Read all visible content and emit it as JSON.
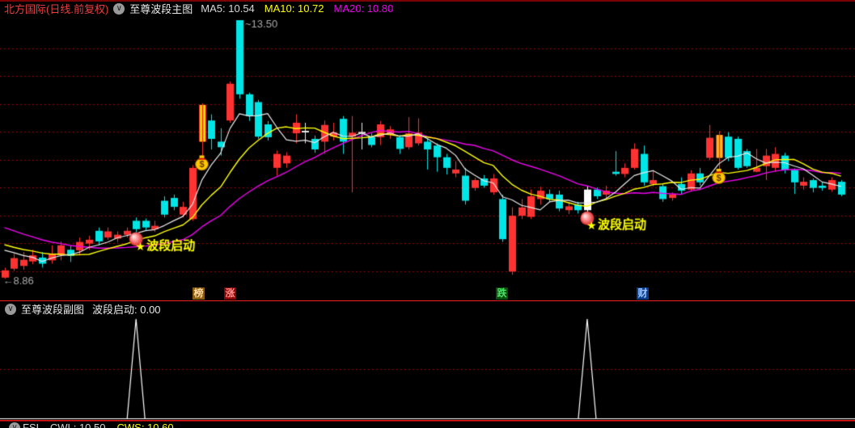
{
  "header": {
    "stock_title": "北方国际(日线.前复权)",
    "panel_title": "至尊波段主图",
    "ma5_label": "MA5: 10.54",
    "ma10_label": "MA10: 10.72",
    "ma20_label": "MA20: 10.80"
  },
  "colors": {
    "up": "#ff3232",
    "down": "#00e5e5",
    "banker_stripe": "#ffff00",
    "signal_candle": "#ffffff",
    "doji": "#e8e8e8",
    "ma5": "#e8e8e8",
    "ma10": "#ffff00",
    "ma20": "#ee00ee",
    "grid": "#c80000",
    "marker_text": "#ffff00",
    "annotation": "#aaaaaa",
    "spike": "#ffffff",
    "bag_body": "#ffc800",
    "bag_outline": "#8a5a00"
  },
  "tags": [
    {
      "label": "榜",
      "bg": "#8a5c10",
      "fg": "#ffd9a0"
    },
    {
      "label": "涨",
      "bg": "#8a0404",
      "fg": "#ff9090"
    },
    {
      "label": "跌",
      "bg": "#064f06",
      "fg": "#4de06a"
    },
    {
      "label": "财",
      "bg": "#0a3c8c",
      "fg": "#9cc3ff"
    }
  ],
  "subheader": {
    "title": "至尊波段副图",
    "value_label": "波段启动: 0.00"
  },
  "bottombar": {
    "name": "FSL",
    "cwl": "CWL: 10.50",
    "cws": "CWS: 10.60"
  },
  "chart_data": [
    {
      "type": "candlestick",
      "title": "至尊波段主图",
      "ma_values": {
        "MA5": 10.54,
        "MA10": 10.72,
        "MA20": 10.8
      },
      "ylim": [
        8.8,
        13.6
      ],
      "grid_levels": [
        9.0,
        9.5,
        10.0,
        10.5,
        11.0,
        11.5,
        12.0,
        12.5,
        13.0
      ],
      "legend": [
        "MA5",
        "MA10",
        "MA20"
      ],
      "candles": [
        [
          8.88,
          9.06,
          8.86,
          9.01,
          "u"
        ],
        [
          9.04,
          9.31,
          9.0,
          9.23,
          "u"
        ],
        [
          9.09,
          9.34,
          9.02,
          9.2,
          "u"
        ],
        [
          9.17,
          9.38,
          9.12,
          9.28,
          "u"
        ],
        [
          9.24,
          9.34,
          9.06,
          9.13,
          "d"
        ],
        [
          9.19,
          9.46,
          9.13,
          9.31,
          "u"
        ],
        [
          9.28,
          9.53,
          9.19,
          9.46,
          "u"
        ],
        [
          9.38,
          9.46,
          9.16,
          9.27,
          "d"
        ],
        [
          9.37,
          9.6,
          9.28,
          9.52,
          "u"
        ],
        [
          9.49,
          9.63,
          9.38,
          9.56,
          "u"
        ],
        [
          9.72,
          9.78,
          9.46,
          9.53,
          "d"
        ],
        [
          9.6,
          9.78,
          9.56,
          9.71,
          "u"
        ],
        [
          9.58,
          9.71,
          9.52,
          9.65,
          "u"
        ],
        [
          9.65,
          9.78,
          9.6,
          9.72,
          "u"
        ],
        [
          9.9,
          9.96,
          9.69,
          9.75,
          "d"
        ],
        [
          9.9,
          9.94,
          9.72,
          9.78,
          "d"
        ],
        [
          9.75,
          9.9,
          9.7,
          9.81,
          "u"
        ],
        [
          10.26,
          10.34,
          9.96,
          10.01,
          "d"
        ],
        [
          10.31,
          10.37,
          10.09,
          10.15,
          "d"
        ],
        [
          10.01,
          10.24,
          9.96,
          10.15,
          "u"
        ],
        [
          9.93,
          10.9,
          9.9,
          10.85,
          "u"
        ],
        [
          11.32,
          12.01,
          11.03,
          11.98,
          "b"
        ],
        [
          11.7,
          11.81,
          11.18,
          11.37,
          "d"
        ],
        [
          11.32,
          11.56,
          11.07,
          11.22,
          "d"
        ],
        [
          11.7,
          12.4,
          11.66,
          12.36,
          "u"
        ],
        [
          13.5,
          13.5,
          12.09,
          12.17,
          "d"
        ],
        [
          12.17,
          12.2,
          11.69,
          11.78,
          "d"
        ],
        [
          12.03,
          12.07,
          11.37,
          11.41,
          "d"
        ],
        [
          11.63,
          11.69,
          11.34,
          11.4,
          "d"
        ],
        [
          10.85,
          11.16,
          10.71,
          11.1,
          "u"
        ],
        [
          10.93,
          11.13,
          10.85,
          11.07,
          "u"
        ],
        [
          11.47,
          11.81,
          11.29,
          11.66,
          "u"
        ],
        [
          11.45,
          11.66,
          11.29,
          11.5,
          "x"
        ],
        [
          11.37,
          11.43,
          11.12,
          11.18,
          "d"
        ],
        [
          11.32,
          11.7,
          11.1,
          11.62,
          "u"
        ],
        [
          11.41,
          11.66,
          11.34,
          11.48,
          "u"
        ],
        [
          11.73,
          11.78,
          11.1,
          11.32,
          "d"
        ],
        [
          11.41,
          11.78,
          10.41,
          11.48,
          "u"
        ],
        [
          11.4,
          11.66,
          11.18,
          11.48,
          "x"
        ],
        [
          11.4,
          11.47,
          11.22,
          11.26,
          "d"
        ],
        [
          11.4,
          11.69,
          11.26,
          11.63,
          "u"
        ],
        [
          11.44,
          11.6,
          11.37,
          11.54,
          "u"
        ],
        [
          11.4,
          11.44,
          11.1,
          11.19,
          "d"
        ],
        [
          11.22,
          11.76,
          11.18,
          11.47,
          "u"
        ],
        [
          11.29,
          11.74,
          11.25,
          11.48,
          "u"
        ],
        [
          11.32,
          11.37,
          10.82,
          11.18,
          "d"
        ],
        [
          11.25,
          11.29,
          10.78,
          11.04,
          "d"
        ],
        [
          11.04,
          11.1,
          10.73,
          10.85,
          "d"
        ],
        [
          10.75,
          10.97,
          10.68,
          10.82,
          "u"
        ],
        [
          10.71,
          10.85,
          10.19,
          10.26,
          "d"
        ],
        [
          10.49,
          10.67,
          10.44,
          10.63,
          "u"
        ],
        [
          10.66,
          10.72,
          10.49,
          10.53,
          "d"
        ],
        [
          10.41,
          10.74,
          10.37,
          10.66,
          "u"
        ],
        [
          10.29,
          10.37,
          9.52,
          9.57,
          "d"
        ],
        [
          8.99,
          10.14,
          8.93,
          9.99,
          "u"
        ],
        [
          9.99,
          10.29,
          9.93,
          10.14,
          "u"
        ],
        [
          9.97,
          10.46,
          9.93,
          10.34,
          "u"
        ],
        [
          10.29,
          10.51,
          10.19,
          10.44,
          "u"
        ],
        [
          10.38,
          10.46,
          10.24,
          10.29,
          "d"
        ],
        [
          10.37,
          10.44,
          10.07,
          10.12,
          "d"
        ],
        [
          10.09,
          10.24,
          10.02,
          10.16,
          "u"
        ],
        [
          10.19,
          10.24,
          10.03,
          10.09,
          "d"
        ],
        [
          10.09,
          10.52,
          10.06,
          10.46,
          "w"
        ],
        [
          10.46,
          10.5,
          10.29,
          10.34,
          "d"
        ],
        [
          10.37,
          10.53,
          10.29,
          10.44,
          "u"
        ],
        [
          10.78,
          11.15,
          10.71,
          10.74,
          "d"
        ],
        [
          10.74,
          10.93,
          10.68,
          10.85,
          "u"
        ],
        [
          10.85,
          11.29,
          10.82,
          11.19,
          "u"
        ],
        [
          11.1,
          11.25,
          10.53,
          10.59,
          "d"
        ],
        [
          10.56,
          10.81,
          10.52,
          10.63,
          "u"
        ],
        [
          10.52,
          10.56,
          10.24,
          10.29,
          "d"
        ],
        [
          10.31,
          10.41,
          10.26,
          10.37,
          "u"
        ],
        [
          10.56,
          10.68,
          10.38,
          10.44,
          "d"
        ],
        [
          10.46,
          10.81,
          10.43,
          10.75,
          "u"
        ],
        [
          10.75,
          10.85,
          10.53,
          10.59,
          "d"
        ],
        [
          11.03,
          11.62,
          10.99,
          11.39,
          "u"
        ],
        [
          11.03,
          11.51,
          10.79,
          11.44,
          "b"
        ],
        [
          11.41,
          11.49,
          10.97,
          11.03,
          "d"
        ],
        [
          11.37,
          11.41,
          10.82,
          10.85,
          "d"
        ],
        [
          11.15,
          11.19,
          10.85,
          10.88,
          "d"
        ],
        [
          10.78,
          11.19,
          10.77,
          10.85,
          "u"
        ],
        [
          10.88,
          11.19,
          10.63,
          11.07,
          "u"
        ],
        [
          10.85,
          11.22,
          10.78,
          11.1,
          "u"
        ],
        [
          11.07,
          11.12,
          10.75,
          10.81,
          "d"
        ],
        [
          10.81,
          10.84,
          10.38,
          10.59,
          "d"
        ],
        [
          10.53,
          10.68,
          10.46,
          10.6,
          "u"
        ],
        [
          10.63,
          10.66,
          10.41,
          10.49,
          "d"
        ],
        [
          10.53,
          10.59,
          10.44,
          10.49,
          "d"
        ],
        [
          10.46,
          10.68,
          10.42,
          10.63,
          "u"
        ],
        [
          10.6,
          10.63,
          10.34,
          10.37,
          "d"
        ]
      ],
      "ma_seed": [
        10.45,
        10.4,
        10.35,
        10.3,
        10.2,
        10.1,
        10.0,
        9.95,
        9.9,
        9.85,
        9.8,
        9.7,
        9.6,
        9.55,
        9.5,
        9.5,
        9.45,
        9.45,
        9.45,
        9.5
      ],
      "signals": [
        {
          "index": 14,
          "label": "波段启动"
        },
        {
          "index": 62,
          "label": "波段启动"
        }
      ],
      "money_bags": [
        21,
        76
      ],
      "annotations": [
        {
          "index": 25,
          "text": "~13.50",
          "anchor": "high"
        },
        {
          "index": 0,
          "text": "←8.86",
          "anchor": "low"
        }
      ]
    },
    {
      "type": "line",
      "title": "至尊波段副图",
      "series_label": "波段启动",
      "current_value": 0.0,
      "ylim": [
        0,
        1
      ],
      "grid_level": 0.5,
      "x_count": 90,
      "spike_indices": [
        14,
        62
      ],
      "spike_value": 1
    }
  ]
}
